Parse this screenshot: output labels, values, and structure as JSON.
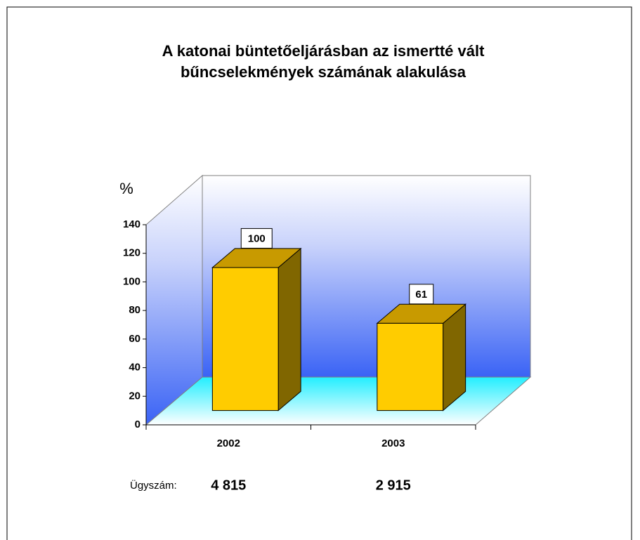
{
  "chart_data": {
    "type": "bar3d",
    "title": "A katonai büntetőeljárásban az ismertté vált bűncselekmények számának alakulása",
    "y_label": "%",
    "categories": [
      "2002",
      "2003"
    ],
    "values": [
      100,
      61
    ],
    "color": "#ffcc00",
    "ylim": [
      0,
      140
    ],
    "yticks": [
      0,
      20,
      40,
      60,
      80,
      100,
      120,
      140
    ],
    "case_count": {
      "label": "Ügyszám:",
      "values": [
        4815,
        2915
      ],
      "value_labels": [
        "4 815",
        "2 915"
      ]
    }
  }
}
